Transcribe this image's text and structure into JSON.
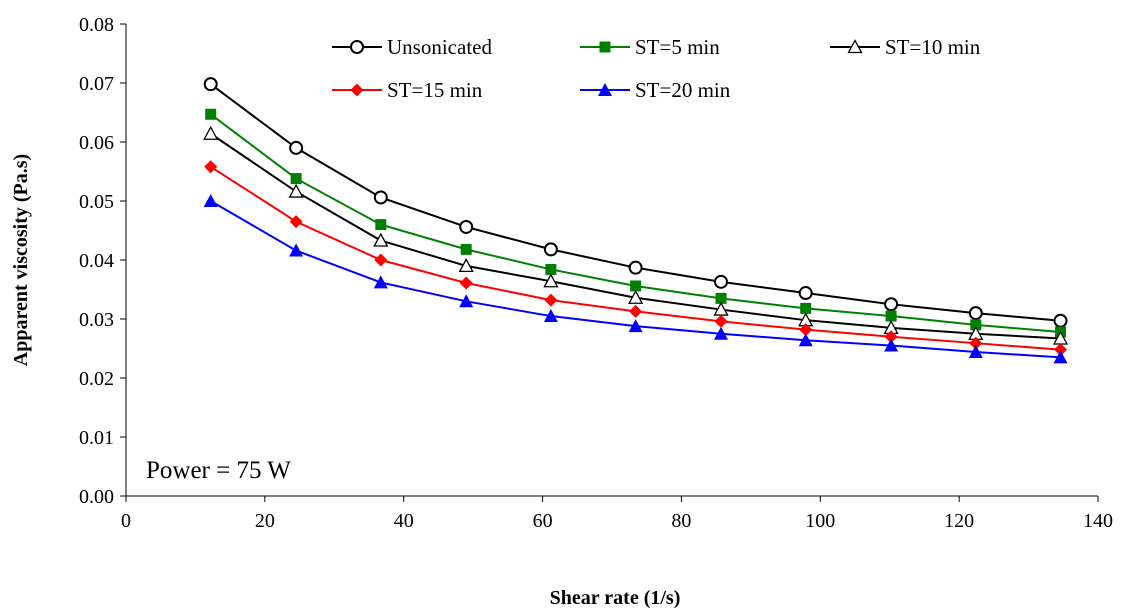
{
  "chart_data": {
    "type": "line",
    "xlabel": "Shear rate (1/s)",
    "ylabel": "Apparent viscosity (Pa.s)",
    "xlim": [
      0,
      140
    ],
    "ylim": [
      0,
      0.08
    ],
    "x_ticks": [
      "0",
      "20",
      "40",
      "60",
      "80",
      "100",
      "120",
      "140"
    ],
    "y_ticks": [
      "0.00",
      "0.01",
      "0.02",
      "0.03",
      "0.04",
      "0.05",
      "0.06",
      "0.07",
      "0.08"
    ],
    "grid": false,
    "legend_position": "top",
    "annotation": "Power = 75 W",
    "x": [
      12.2,
      24.5,
      36.7,
      49.0,
      61.2,
      73.4,
      85.7,
      97.9,
      110.2,
      122.4,
      134.6
    ],
    "series": [
      {
        "name": "Unsonicated",
        "color": "#000000",
        "marker": "circle-open",
        "values": [
          0.0698,
          0.059,
          0.0506,
          0.0456,
          0.0418,
          0.0387,
          0.0363,
          0.0344,
          0.0325,
          0.031,
          0.0297
        ]
      },
      {
        "name": "ST=5 min",
        "color": "#008000",
        "marker": "square",
        "values": [
          0.0647,
          0.0538,
          0.046,
          0.0418,
          0.0384,
          0.0356,
          0.0335,
          0.0318,
          0.0305,
          0.029,
          0.0278
        ]
      },
      {
        "name": "ST=10 min",
        "color": "#000000",
        "marker": "triangle-open",
        "values": [
          0.0614,
          0.0516,
          0.0433,
          0.039,
          0.0364,
          0.0336,
          0.0316,
          0.0298,
          0.0285,
          0.0275,
          0.0267
        ]
      },
      {
        "name": "ST=15 min",
        "color": "#ff0000",
        "marker": "diamond",
        "values": [
          0.0558,
          0.0465,
          0.04,
          0.0361,
          0.0332,
          0.0313,
          0.0296,
          0.0282,
          0.027,
          0.0259,
          0.0248
        ]
      },
      {
        "name": "ST=20 min",
        "color": "#0000ff",
        "marker": "triangle",
        "values": [
          0.05,
          0.0416,
          0.0362,
          0.033,
          0.0305,
          0.0288,
          0.0275,
          0.0264,
          0.0255,
          0.0244,
          0.0235
        ]
      }
    ]
  }
}
